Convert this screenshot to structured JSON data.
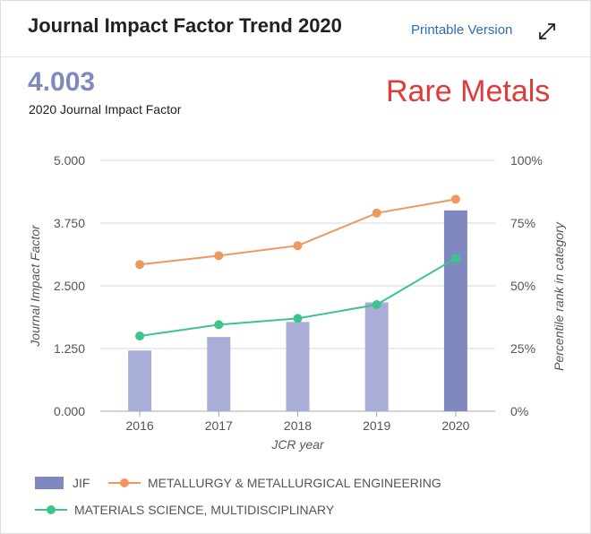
{
  "header": {
    "title": "Journal Impact Factor Trend 2020",
    "printable_label": "Printable Version"
  },
  "summary": {
    "value": "4.003",
    "label": "2020 Journal Impact Factor"
  },
  "journal_name": "Rare Metals",
  "colors": {
    "bar": "#a9aed8",
    "bar_highlight": "#7f88bf",
    "series1": "#f0975f",
    "series2": "#3cc48b",
    "accent_link": "#2a6ebb",
    "journal_name": "#e03a3a"
  },
  "chart_data": {
    "type": "bar",
    "categories": [
      "2016",
      "2017",
      "2018",
      "2019",
      "2020"
    ],
    "xlabel": "JCR year",
    "ylabel_left": "Journal Impact Factor",
    "ylabel_right": "Percentile rank in category",
    "ylim_left": [
      0,
      5
    ],
    "ylim_right": [
      0,
      100
    ],
    "yticks_left": [
      "0.000",
      "1.250",
      "2.500",
      "3.750",
      "5.000"
    ],
    "yticks_right": [
      "0%",
      "25%",
      "50%",
      "75%",
      "100%"
    ],
    "grid": true,
    "bars": {
      "name": "JIF",
      "values": [
        1.21,
        1.48,
        1.78,
        2.17,
        4.003
      ],
      "highlight_index": 4
    },
    "series": [
      {
        "name": "METALLURGY & METALLURGICAL ENGINEERING",
        "values": [
          58.5,
          62,
          66,
          79,
          84.5
        ],
        "color": "#f0975f"
      },
      {
        "name": "MATERIALS SCIENCE, MULTIDISCIPLINARY",
        "values": [
          30,
          34.5,
          37,
          42.5,
          61
        ],
        "color": "#3cc48b"
      }
    ]
  },
  "legend": {
    "jif": "JIF",
    "s1": "METALLURGY & METALLURGICAL ENGINEERING",
    "s2": "MATERIALS SCIENCE, MULTIDISCIPLINARY"
  }
}
